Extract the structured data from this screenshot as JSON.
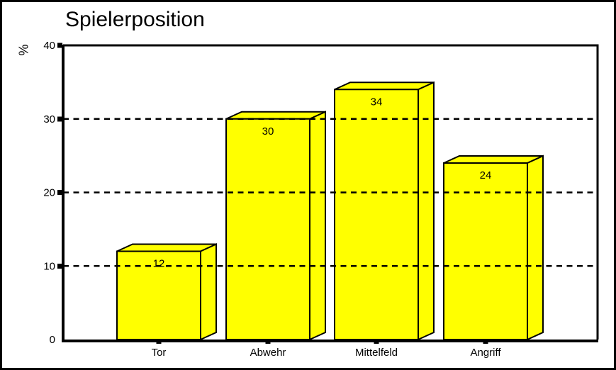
{
  "window": {
    "background": "#FFFFFF",
    "frame_color": "#000000"
  },
  "chart_data": {
    "type": "bar",
    "title": "Spielerposition",
    "ylabel": "%",
    "xlabel": "",
    "categories": [
      "Tor",
      "Abwehr",
      "Mittelfeld",
      "Angriff"
    ],
    "values": [
      12,
      30,
      34,
      24
    ],
    "show_value_labels": true,
    "ylim": [
      0,
      40
    ],
    "yticks": [
      0,
      10,
      20,
      30,
      40
    ],
    "gridlines": [
      10,
      20,
      30
    ],
    "grid_style": "dashed-horizontal",
    "grid_over_bars": true,
    "legend": "none",
    "bar_style": "3d",
    "bar_fill": "#FFFF00",
    "outline": "#000000",
    "text_color": "#000000"
  }
}
